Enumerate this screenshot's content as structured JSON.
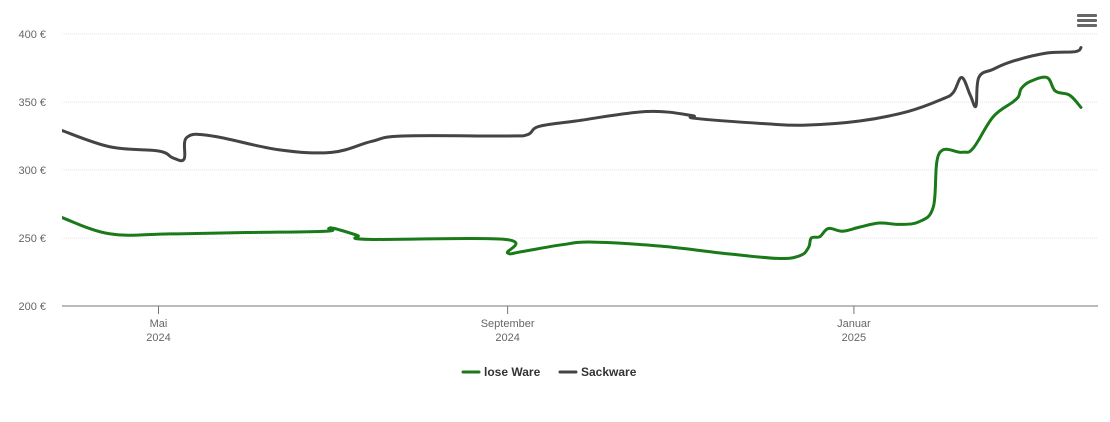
{
  "chart_data": {
    "type": "line",
    "x_axis": {
      "type": "date",
      "range": [
        "2024-03-28",
        "2025-03-28"
      ],
      "ticks": [
        {
          "date": "2024-05-01",
          "line1": "Mai",
          "line2": "2024"
        },
        {
          "date": "2024-09-01",
          "line1": "September",
          "line2": "2024"
        },
        {
          "date": "2025-01-01",
          "line1": "Januar",
          "line2": "2025"
        }
      ]
    },
    "y_axis": {
      "range": [
        200,
        400
      ],
      "ticks": [
        200,
        250,
        300,
        350,
        400
      ],
      "tick_labels": [
        "200 €",
        "250 €",
        "300 €",
        "350 €",
        "400 €"
      ],
      "grid": true
    },
    "series": [
      {
        "name": "lose Ware",
        "color": "#1a7a1a",
        "points": [
          [
            "2024-03-28",
            265
          ],
          [
            "2024-04-14",
            253
          ],
          [
            "2024-05-05",
            253
          ],
          [
            "2024-06-01",
            254
          ],
          [
            "2024-06-29",
            255
          ],
          [
            "2024-06-30",
            257
          ],
          [
            "2024-07-02",
            257
          ],
          [
            "2024-07-10",
            252
          ],
          [
            "2024-07-14",
            249
          ],
          [
            "2024-08-31",
            249
          ],
          [
            "2024-09-01",
            239
          ],
          [
            "2024-09-06",
            240
          ],
          [
            "2024-09-20",
            245
          ],
          [
            "2024-10-01",
            247
          ],
          [
            "2024-10-25",
            244
          ],
          [
            "2024-11-15",
            239
          ],
          [
            "2024-12-05",
            235
          ],
          [
            "2024-12-13",
            237
          ],
          [
            "2024-12-16",
            243
          ],
          [
            "2024-12-17",
            250
          ],
          [
            "2024-12-20",
            251
          ],
          [
            "2024-12-23",
            257
          ],
          [
            "2024-12-28",
            255
          ],
          [
            "2025-01-03",
            258
          ],
          [
            "2025-01-10",
            261
          ],
          [
            "2025-01-17",
            260
          ],
          [
            "2025-01-24",
            262
          ],
          [
            "2025-01-29",
            273
          ],
          [
            "2025-01-31",
            312
          ],
          [
            "2025-02-08",
            313
          ],
          [
            "2025-02-12",
            316
          ],
          [
            "2025-02-19",
            339
          ],
          [
            "2025-02-26",
            350
          ],
          [
            "2025-02-28",
            354
          ],
          [
            "2025-03-01",
            360
          ],
          [
            "2025-03-04",
            365
          ],
          [
            "2025-03-10",
            368
          ],
          [
            "2025-03-13",
            358
          ],
          [
            "2025-03-18",
            355
          ],
          [
            "2025-03-22",
            346
          ]
        ]
      },
      {
        "name": "Sackware",
        "color": "#444444",
        "points": [
          [
            "2024-03-28",
            329
          ],
          [
            "2024-04-14",
            317
          ],
          [
            "2024-05-01",
            314
          ],
          [
            "2024-05-06",
            309
          ],
          [
            "2024-05-10",
            308
          ],
          [
            "2024-05-11",
            324
          ],
          [
            "2024-05-20",
            325
          ],
          [
            "2024-06-12",
            315
          ],
          [
            "2024-07-01",
            313
          ],
          [
            "2024-07-15",
            321
          ],
          [
            "2024-07-26",
            325
          ],
          [
            "2024-08-31",
            325
          ],
          [
            "2024-09-08",
            326
          ],
          [
            "2024-09-12",
            332
          ],
          [
            "2024-09-25",
            336
          ],
          [
            "2024-10-20",
            343
          ],
          [
            "2024-11-05",
            340
          ],
          [
            "2024-11-06",
            338
          ],
          [
            "2024-12-01",
            334
          ],
          [
            "2024-12-15",
            333
          ],
          [
            "2025-01-03",
            336
          ],
          [
            "2025-01-20",
            343
          ],
          [
            "2025-02-01",
            352
          ],
          [
            "2025-02-05",
            357
          ],
          [
            "2025-02-08",
            368
          ],
          [
            "2025-02-11",
            355
          ],
          [
            "2025-02-13",
            347
          ],
          [
            "2025-02-14",
            368
          ],
          [
            "2025-02-19",
            374
          ],
          [
            "2025-02-26",
            380
          ],
          [
            "2025-03-10",
            386
          ],
          [
            "2025-03-20",
            387
          ],
          [
            "2025-03-22",
            390
          ]
        ]
      }
    ],
    "legend": {
      "position": "bottom-center",
      "items": [
        "lose Ware",
        "Sackware"
      ]
    }
  },
  "menu_icon": "hamburger-menu-icon"
}
